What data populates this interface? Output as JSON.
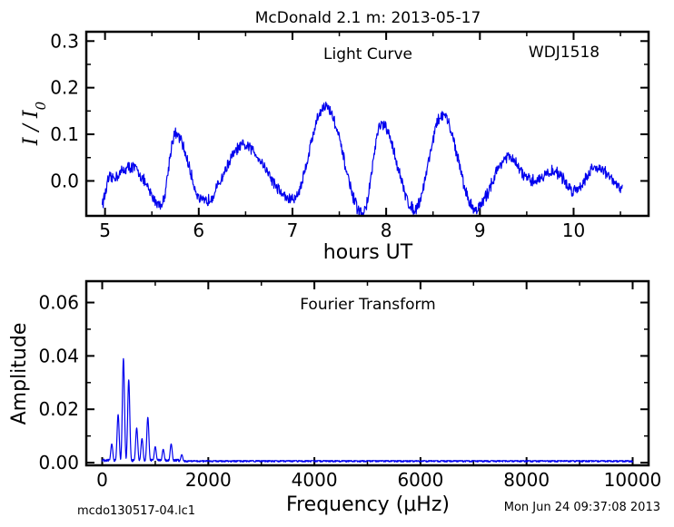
{
  "page": {
    "title": "McDonald 2.1 m:  2013-05-17",
    "file_label": "mcdo130517-04.lc1",
    "timestamp": "Mon Jun 24 09:37:08 2013"
  },
  "chart_data": [
    {
      "type": "line",
      "annotation_left": "Light Curve",
      "annotation_right": "WDJ1518",
      "xlabel": "hours UT",
      "ylabel": "I / I0",
      "xlim": [
        4.8,
        10.8
      ],
      "ylim": [
        -0.075,
        0.32
      ],
      "xticks": [
        5,
        6,
        7,
        8,
        9,
        10
      ],
      "xtick_labels": [
        "5",
        "6",
        "7",
        "8",
        "9",
        "10"
      ],
      "yticks": [
        0.0,
        0.1,
        0.2,
        0.3
      ],
      "ytick_labels": [
        "0.0",
        "0.1",
        "0.2",
        "0.3"
      ],
      "color": "#0000ee",
      "x_start": 4.97,
      "x_end": 10.52,
      "peaks": [
        {
          "x": 5.05,
          "y": 0.005
        },
        {
          "x": 5.28,
          "y": 0.03
        },
        {
          "x": 5.75,
          "y": 0.1
        },
        {
          "x": 6.48,
          "y": 0.075
        },
        {
          "x": 7.35,
          "y": 0.16
        },
        {
          "x": 7.95,
          "y": 0.12
        },
        {
          "x": 8.6,
          "y": 0.14
        },
        {
          "x": 9.3,
          "y": 0.05
        },
        {
          "x": 9.8,
          "y": 0.02
        },
        {
          "x": 10.25,
          "y": 0.03
        }
      ],
      "troughs": [
        {
          "x": 4.97,
          "y": -0.045
        },
        {
          "x": 5.6,
          "y": -0.05
        },
        {
          "x": 6.05,
          "y": -0.045
        },
        {
          "x": 7.0,
          "y": -0.04
        },
        {
          "x": 7.75,
          "y": -0.07
        },
        {
          "x": 8.3,
          "y": -0.06
        },
        {
          "x": 8.95,
          "y": -0.06
        },
        {
          "x": 9.55,
          "y": 0.0
        },
        {
          "x": 10.0,
          "y": -0.02
        },
        {
          "x": 10.52,
          "y": -0.015
        }
      ]
    },
    {
      "type": "line",
      "annotation": "Fourier Transform",
      "xlabel": "Frequency (μHz)",
      "ylabel": "Amplitude",
      "xlim": [
        -300,
        10300
      ],
      "ylim": [
        -0.001,
        0.068
      ],
      "xticks": [
        0,
        2000,
        4000,
        6000,
        8000,
        10000
      ],
      "xtick_labels": [
        "0",
        "2000",
        "4000",
        "6000",
        "8000",
        "10000"
      ],
      "yticks": [
        0.0,
        0.02,
        0.04,
        0.06
      ],
      "ytick_labels": [
        "0.00",
        "0.02",
        "0.04",
        "0.06"
      ],
      "color": "#0000ee",
      "x_range": [
        0,
        10000
      ],
      "peaks": [
        {
          "x": 180,
          "amp": 0.007
        },
        {
          "x": 300,
          "amp": 0.018
        },
        {
          "x": 400,
          "amp": 0.039
        },
        {
          "x": 500,
          "amp": 0.031
        },
        {
          "x": 650,
          "amp": 0.013
        },
        {
          "x": 750,
          "amp": 0.009
        },
        {
          "x": 860,
          "amp": 0.017
        },
        {
          "x": 1000,
          "amp": 0.006
        },
        {
          "x": 1150,
          "amp": 0.005
        },
        {
          "x": 1300,
          "amp": 0.007
        },
        {
          "x": 1500,
          "amp": 0.003
        }
      ],
      "noise_floor": 0.0008
    }
  ]
}
